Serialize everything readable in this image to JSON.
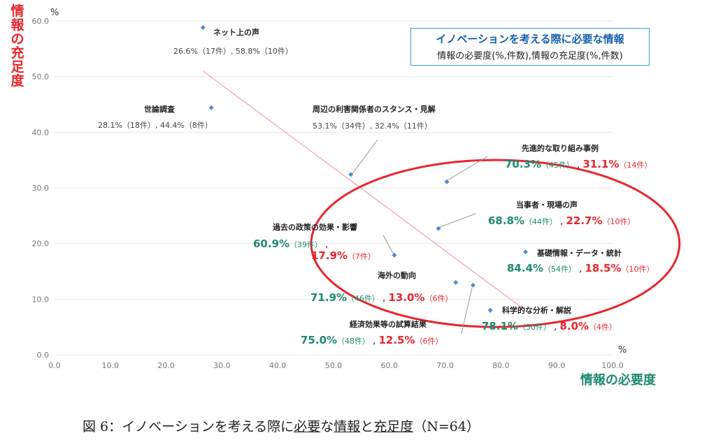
{
  "y_unit": "%",
  "x_unit": "%",
  "ylabel_chars": [
    "情",
    "報",
    "の",
    "充",
    "足",
    "度"
  ],
  "legend": {
    "title": "イノベーションを考える際に必要な情報",
    "subtitle": "情報の必要度(%,件数),情報の充足度(%,件数)"
  },
  "caption": {
    "prefix": "図 6：イノベーションを考える際に",
    "word1": "必要",
    "mid1": "な",
    "word2": "情報",
    "mid2": "と",
    "word3": "充足度",
    "suffix": "（N=64）"
  },
  "colors": {
    "point": "#4a8fd4",
    "need": "#1f8a6f",
    "sufficiency": "#e8262c",
    "ellipse": "#e8262c",
    "trend": "#f4a1a3",
    "grid": "#e6e6e6",
    "leader": "#9a9a9a"
  },
  "chart_data": {
    "type": "scatter",
    "xlabel": "情報の必要度",
    "ylabel": "情報の充足度",
    "xlim": [
      0,
      100
    ],
    "ylim": [
      0,
      60
    ],
    "xticks": [
      "0.0",
      "10.0",
      "20.0",
      "30.0",
      "40.0",
      "50.0",
      "60.0",
      "70.0",
      "80.0",
      "90.0",
      "100.0"
    ],
    "yticks": [
      "0.0",
      "10.0",
      "20.0",
      "30.0",
      "40.0",
      "50.0",
      "60.0"
    ],
    "grid": true,
    "points": [
      {
        "name": "ネット上の声",
        "x": 26.6,
        "y": 58.8,
        "label_line": "26.6%（17件）, 58.8%（10件）",
        "highlight": false
      },
      {
        "name": "世論調査",
        "x": 28.1,
        "y": 44.4,
        "label_line": "28.1%（18件）, 44.4%（8件）",
        "highlight": false
      },
      {
        "name": "周辺の利害関係者のスタンス・見解",
        "x": 53.1,
        "y": 32.4,
        "label_line": "53.1%（34件）, 32.4%（11件）",
        "highlight": false
      },
      {
        "name": "先進的な取り組み事例",
        "x": 70.3,
        "y": 31.1,
        "need": "70.3%",
        "need_count": "（45件）",
        "suff": "31.1%",
        "suff_count": "（14件）",
        "highlight": true
      },
      {
        "name": "当事者・現場の声",
        "x": 68.8,
        "y": 22.7,
        "need": "68.8%",
        "need_count": "（44件）",
        "suff": "22.7%",
        "suff_count": "（10件）",
        "highlight": true
      },
      {
        "name": "過去の政策の効果・影響",
        "x": 60.9,
        "y": 17.9,
        "need": "60.9%",
        "need_count": "（39件）",
        "suff": "17.9%",
        "suff_count": "（7件）",
        "highlight": true
      },
      {
        "name": "基礎情報・データ・統計",
        "x": 84.4,
        "y": 18.5,
        "need": "84.4%",
        "need_count": "（54件）",
        "suff": "18.5%",
        "suff_count": "（10件）",
        "highlight": true
      },
      {
        "name": "海外の動向",
        "x": 71.9,
        "y": 13.0,
        "need": "71.9%",
        "need_count": "（46件）",
        "suff": "13.0%",
        "suff_count": "（6件）",
        "highlight": true
      },
      {
        "name": "経済効果等の試算結果",
        "x": 75.0,
        "y": 12.5,
        "need": "75.0%",
        "need_count": "（48件）",
        "suff": "12.5%",
        "suff_count": "（6件）",
        "highlight": true
      },
      {
        "name": "科学的な分析・解説",
        "x": 78.1,
        "y": 8.0,
        "need": "78.1%",
        "need_count": "（50件）",
        "suff": "8.0%",
        "suff_count": "（4件）",
        "highlight": true
      }
    ],
    "trendline": {
      "from": [
        26.6,
        51.0
      ],
      "to": [
        84.4,
        8.0
      ]
    },
    "ellipse": {
      "cx": 79.0,
      "cy": 20.0,
      "rx": 33.0,
      "ry": 15.0
    }
  }
}
